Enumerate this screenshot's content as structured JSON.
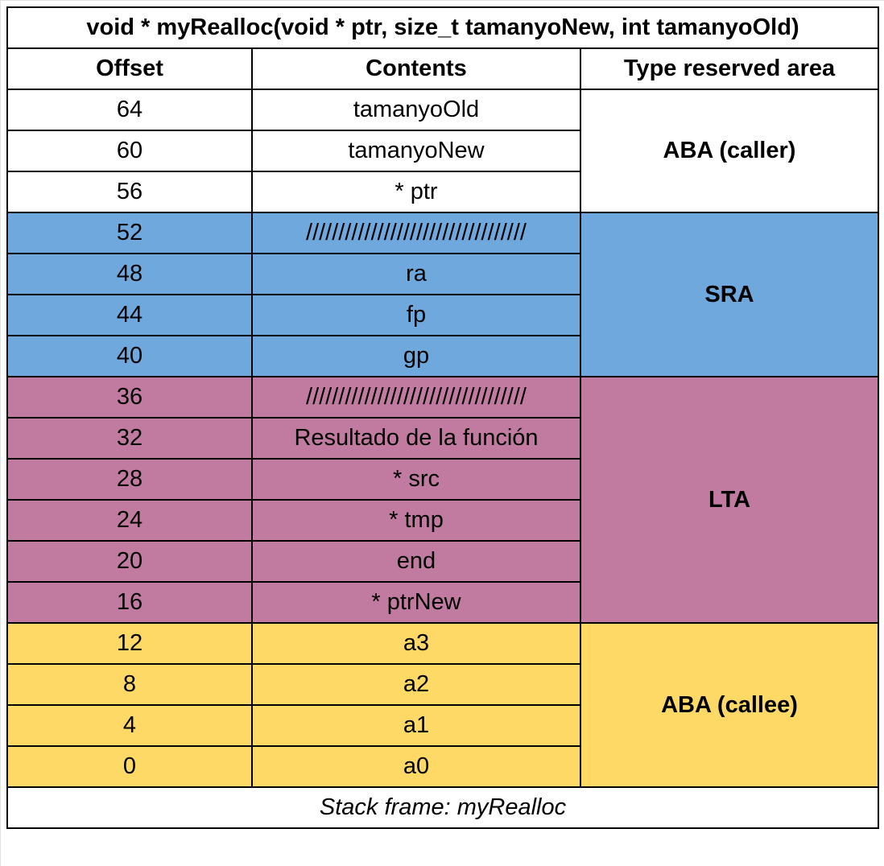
{
  "title": "void * myRealloc(void * ptr, size_t tamanyoNew, int tamanyoOld)",
  "headers": {
    "offset": "Offset",
    "contents": "Contents",
    "area": "Type reserved area"
  },
  "groups": [
    {
      "area": "ABA (caller)",
      "color": "#ffffff",
      "rows": [
        {
          "offset": "64",
          "contents": "tamanyoOld"
        },
        {
          "offset": "60",
          "contents": "tamanyoNew"
        },
        {
          "offset": "56",
          "contents": "* ptr"
        }
      ]
    },
    {
      "area": "SRA",
      "color": "#6fa8dc",
      "rows": [
        {
          "offset": "52",
          "contents": "//////////////////////////////////"
        },
        {
          "offset": "48",
          "contents": "ra"
        },
        {
          "offset": "44",
          "contents": "fp"
        },
        {
          "offset": "40",
          "contents": "gp"
        }
      ]
    },
    {
      "area": "LTA",
      "color": "#c27ba0",
      "rows": [
        {
          "offset": "36",
          "contents": "//////////////////////////////////"
        },
        {
          "offset": "32",
          "contents": "Resultado de la función"
        },
        {
          "offset": "28",
          "contents": "* src"
        },
        {
          "offset": "24",
          "contents": "* tmp"
        },
        {
          "offset": "20",
          "contents": "end"
        },
        {
          "offset": "16",
          "contents": "* ptrNew"
        }
      ]
    },
    {
      "area": "ABA (callee)",
      "color": "#ffd966",
      "rows": [
        {
          "offset": "12",
          "contents": "a3"
        },
        {
          "offset": "8",
          "contents": "a2"
        },
        {
          "offset": "4",
          "contents": "a1"
        },
        {
          "offset": "0",
          "contents": "a0"
        }
      ]
    }
  ],
  "caption": "Stack frame: myRealloc"
}
